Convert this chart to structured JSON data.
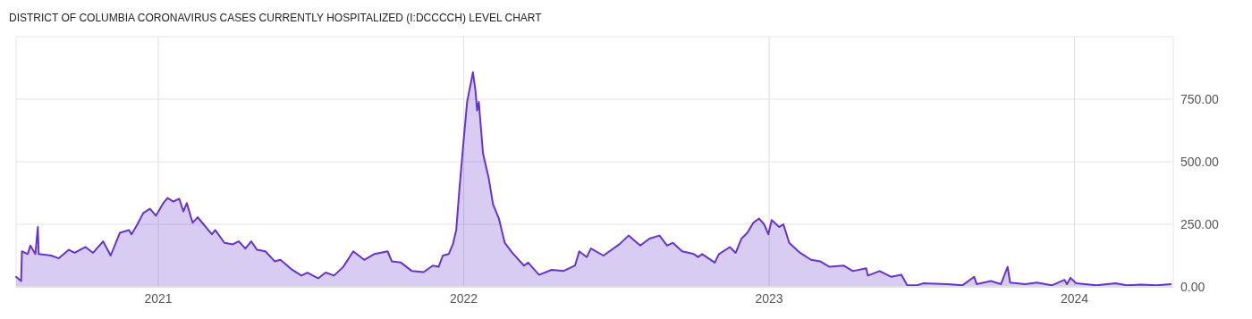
{
  "chart_data": {
    "type": "area",
    "title": "DISTRICT OF COLUMBIA CORONAVIRUS CASES CURRENTLY HOSPITALIZED (I:DCCCCH) LEVEL CHART",
    "xlim": [
      "2020-07-15",
      "2024-04-28"
    ],
    "xticks": [
      "2021",
      "2022",
      "2023",
      "2024"
    ],
    "ylim": [
      0,
      1000
    ],
    "yticks": [
      {
        "value": 0,
        "label": "0.00"
      },
      {
        "value": 250,
        "label": "250.00"
      },
      {
        "value": 500,
        "label": "500.00"
      },
      {
        "value": 750,
        "label": "750.00"
      }
    ],
    "grid": true,
    "series": [
      {
        "color": "#6633cc",
        "x": [
          "2020-07-15",
          "2020-07-21",
          "2020-07-22",
          "2020-07-29",
          "2020-08-01",
          "2020-08-07",
          "2020-08-10",
          "2020-08-11",
          "2020-08-26",
          "2020-09-04",
          "2020-09-16",
          "2020-09-23",
          "2020-10-06",
          "2020-10-15",
          "2020-10-27",
          "2020-11-05",
          "2020-11-16",
          "2020-11-27",
          "2020-11-30",
          "2020-12-07",
          "2020-12-14",
          "2020-12-22",
          "2020-12-29",
          "2021-01-07",
          "2021-01-12",
          "2021-01-19",
          "2021-01-26",
          "2021-01-31",
          "2021-02-04",
          "2021-02-11",
          "2021-02-17",
          "2021-02-24",
          "2021-03-06",
          "2021-03-10",
          "2021-03-21",
          "2021-03-31",
          "2021-04-07",
          "2021-04-15",
          "2021-04-22",
          "2021-04-29",
          "2021-05-09",
          "2021-05-20",
          "2021-05-27",
          "2021-06-10",
          "2021-06-21",
          "2021-06-28",
          "2021-07-11",
          "2021-07-20",
          "2021-07-30",
          "2021-08-10",
          "2021-08-22",
          "2021-09-04",
          "2021-09-16",
          "2021-09-23",
          "2021-10-02",
          "2021-10-07",
          "2021-10-18",
          "2021-10-31",
          "2021-11-14",
          "2021-11-25",
          "2021-12-02",
          "2021-12-07",
          "2021-12-14",
          "2021-12-19",
          "2021-12-23",
          "2021-12-27",
          "2022-01-01",
          "2022-01-05",
          "2022-01-09",
          "2022-01-12",
          "2022-01-15",
          "2022-01-17",
          "2022-01-19",
          "2022-01-24",
          "2022-01-31",
          "2022-02-05",
          "2022-02-12",
          "2022-02-19",
          "2022-02-28",
          "2022-03-14",
          "2022-03-19",
          "2022-04-01",
          "2022-04-16",
          "2022-04-30",
          "2022-05-14",
          "2022-05-19",
          "2022-05-28",
          "2022-06-02",
          "2022-06-17",
          "2022-07-06",
          "2022-07-17",
          "2022-07-25",
          "2022-07-31",
          "2022-08-11",
          "2022-08-23",
          "2022-09-01",
          "2022-09-08",
          "2022-09-19",
          "2022-10-03",
          "2022-10-08",
          "2022-10-13",
          "2022-10-28",
          "2022-11-02",
          "2022-11-15",
          "2022-11-22",
          "2022-11-29",
          "2022-12-06",
          "2022-12-13",
          "2022-12-20",
          "2022-12-26",
          "2022-12-31",
          "2023-01-04",
          "2023-01-13",
          "2023-01-18",
          "2023-01-25",
          "2023-02-07",
          "2023-02-20",
          "2023-03-03",
          "2023-03-14",
          "2023-03-31",
          "2023-04-11",
          "2023-04-27",
          "2023-04-29",
          "2023-05-13",
          "2023-05-27",
          "2023-06-08",
          "2023-06-15",
          "2023-06-27",
          "2023-07-04",
          "2023-08-02",
          "2023-08-20",
          "2023-09-03",
          "2023-09-06",
          "2023-09-23",
          "2023-10-05",
          "2023-10-13",
          "2023-10-16",
          "2023-11-03",
          "2023-11-17",
          "2023-12-05",
          "2023-12-20",
          "2023-12-23",
          "2023-12-27",
          "2024-01-03",
          "2024-01-27",
          "2024-02-19",
          "2024-03-03",
          "2024-03-21",
          "2024-04-08",
          "2024-04-25"
        ],
        "values": [
          40,
          23,
          142,
          131,
          165,
          131,
          239,
          131,
          125,
          114,
          148,
          136,
          159,
          136,
          182,
          125,
          216,
          227,
          210,
          250,
          295,
          312,
          284,
          335,
          355,
          341,
          352,
          301,
          335,
          256,
          278,
          250,
          210,
          227,
          176,
          170,
          182,
          153,
          182,
          148,
          142,
          102,
          108,
          68,
          45,
          57,
          34,
          57,
          45,
          80,
          142,
          108,
          131,
          136,
          142,
          102,
          97,
          63,
          59,
          85,
          80,
          125,
          131,
          170,
          227,
          398,
          591,
          739,
          807,
          858,
          784,
          705,
          739,
          534,
          432,
          330,
          273,
          176,
          136,
          85,
          97,
          48,
          68,
          63,
          85,
          142,
          119,
          153,
          125,
          170,
          205,
          182,
          165,
          193,
          205,
          165,
          176,
          142,
          131,
          119,
          131,
          97,
          131,
          159,
          136,
          193,
          216,
          256,
          273,
          250,
          210,
          267,
          239,
          250,
          176,
          136,
          108,
          102,
          80,
          85,
          63,
          74,
          45,
          63,
          40,
          48,
          6,
          6,
          14,
          11,
          6,
          40,
          11,
          23,
          11,
          80,
          17,
          11,
          17,
          6,
          28,
          11,
          36,
          14,
          6,
          14,
          6,
          9,
          6,
          11
        ]
      }
    ]
  }
}
